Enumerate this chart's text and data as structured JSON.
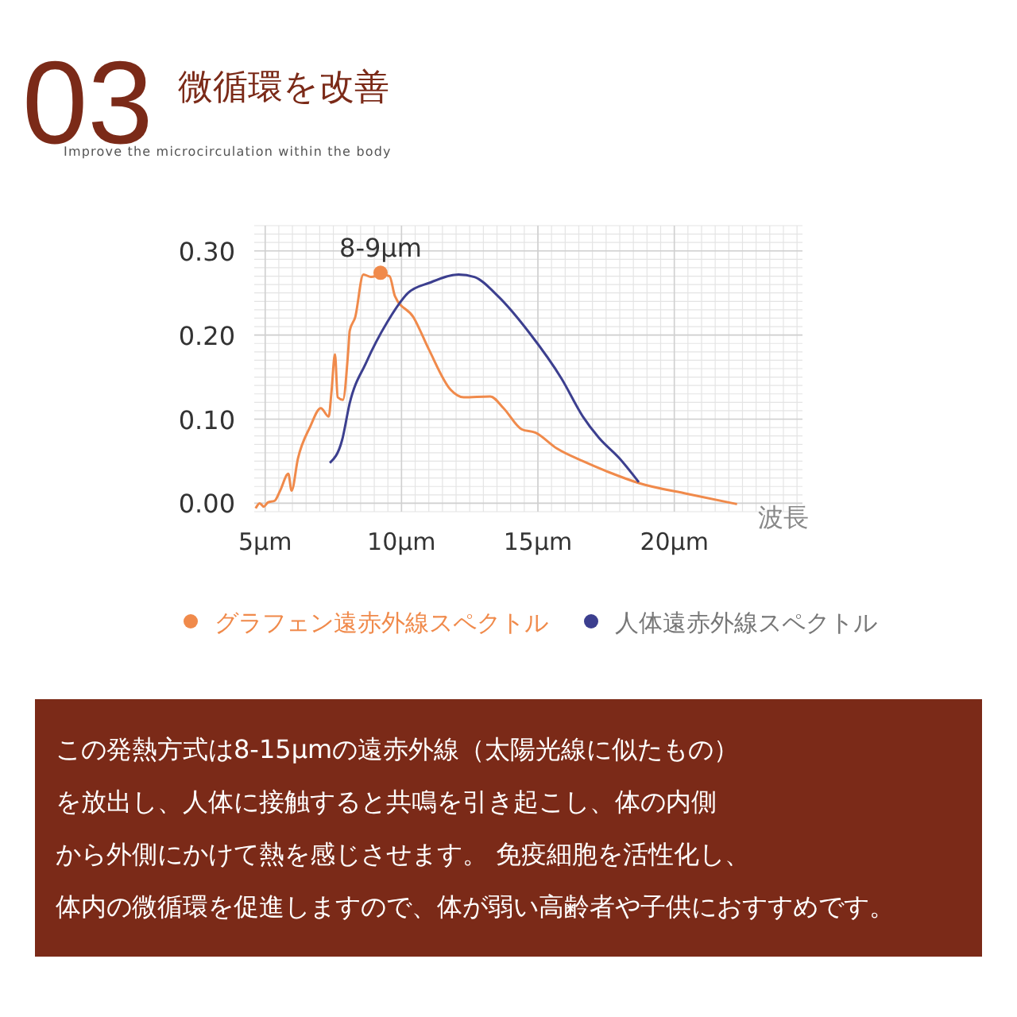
{
  "chart_data": {
    "type": "line",
    "title": "微循環を改善",
    "subtitle": "Improve the microcirculation within the body",
    "xlabel": "波長",
    "xlim": [
      4.6,
      24.7
    ],
    "ylim": [
      -0.01,
      0.33
    ],
    "xticks": [
      {
        "value": 5,
        "label": "5µm"
      },
      {
        "value": 10,
        "label": "10µm"
      },
      {
        "value": 15,
        "label": "15µm"
      },
      {
        "value": 20,
        "label": "20µm"
      }
    ],
    "yticks": [
      {
        "value": 0,
        "label": "0.00"
      },
      {
        "value": 0.1,
        "label": "0.10"
      },
      {
        "value": 0.2,
        "label": "0.20"
      },
      {
        "value": 0.3,
        "label": "0.30"
      }
    ],
    "grid": true,
    "legend": "bottom",
    "marker": "none",
    "line_style": "solid",
    "series": [
      {
        "name": "グラフェン遠赤外線スペクトル",
        "color": "#f08a4b",
        "x": [
          4.65,
          4.8,
          4.95,
          5.1,
          5.35,
          5.55,
          5.85,
          5.97,
          6.2,
          6.65,
          7.04,
          7.33,
          7.43,
          7.56,
          7.66,
          7.85,
          8.05,
          8.1,
          8.3,
          8.6,
          8.88,
          9.27,
          9.56,
          9.76,
          10.44,
          11.0,
          11.8,
          12.28,
          13.25,
          13.74,
          14.4,
          14.9,
          15.7,
          16.65,
          17.6,
          18.7,
          20.5,
          22.3
        ],
        "values": [
          -0.006,
          0.0,
          -0.004,
          0.001,
          0.003,
          0.015,
          0.035,
          0.015,
          0.053,
          0.091,
          0.113,
          0.103,
          0.132,
          0.177,
          0.126,
          0.123,
          0.183,
          0.205,
          0.221,
          0.272,
          0.269,
          0.272,
          0.27,
          0.246,
          0.221,
          0.183,
          0.135,
          0.126,
          0.127,
          0.113,
          0.088,
          0.084,
          0.065,
          0.05,
          0.037,
          0.024,
          0.011,
          -0.001
        ]
      },
      {
        "name": "人体遠赤外線スペクトル",
        "color": "#3c3f8f",
        "x": [
          7.37,
          7.82,
          8.1,
          8.7,
          9.47,
          10.24,
          11.02,
          12.09,
          12.67,
          13.54,
          14.7,
          15.87,
          16.65,
          17.23,
          18.0,
          18.7
        ],
        "values": [
          0.048,
          0.075,
          0.119,
          0.167,
          0.215,
          0.25,
          0.262,
          0.272,
          0.269,
          0.246,
          0.202,
          0.148,
          0.103,
          0.078,
          0.053,
          0.025
        ]
      }
    ],
    "annotations": [
      {
        "text": "8-9µm",
        "x": 9.23,
        "y": 0.274
      },
      "03",
      "この発熱方式は8-15μmの遠赤外線（太陽光線に似たもの）",
      "を放出し、人体に接触すると共鳴を引き起こし、体の内側",
      "から外側にかけて熱を感じさせます。 免疫細胞を活性化し、",
      "体内の微循環を促進しますので、体が弱い高齢者や子供におすすめです。"
    ]
  }
}
